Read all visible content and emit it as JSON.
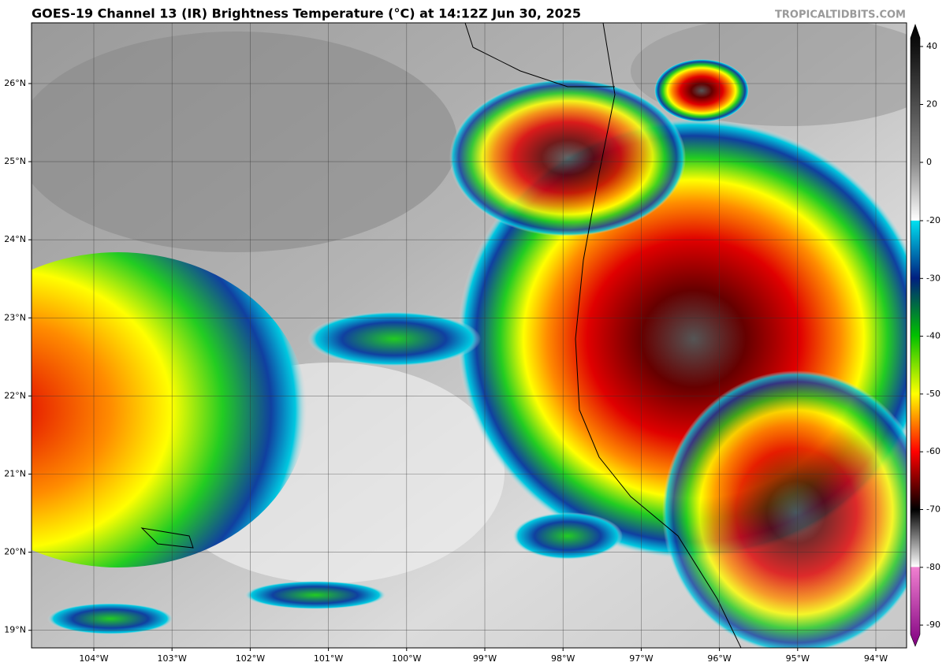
{
  "header": {
    "title": "GOES-19 Channel 13 (IR) Brightness Temperature (°C) at 14:12Z Jun 30, 2025",
    "credit": "TROPICALTIDBITS.COM"
  },
  "map": {
    "lon_labels": [
      "104°W",
      "103°W",
      "102°W",
      "101°W",
      "100°W",
      "99°W",
      "98°W",
      "97°W",
      "96°W",
      "95°W",
      "94°W"
    ],
    "lat_labels": [
      "26°N",
      "25°N",
      "24°N",
      "23°N",
      "22°N",
      "21°N",
      "20°N",
      "19°N"
    ]
  },
  "colorbar": {
    "ticks": [
      "40",
      "20",
      "0",
      "-20",
      "-30",
      "-40",
      "-50",
      "-60",
      "-70",
      "-80",
      "-90"
    ]
  }
}
